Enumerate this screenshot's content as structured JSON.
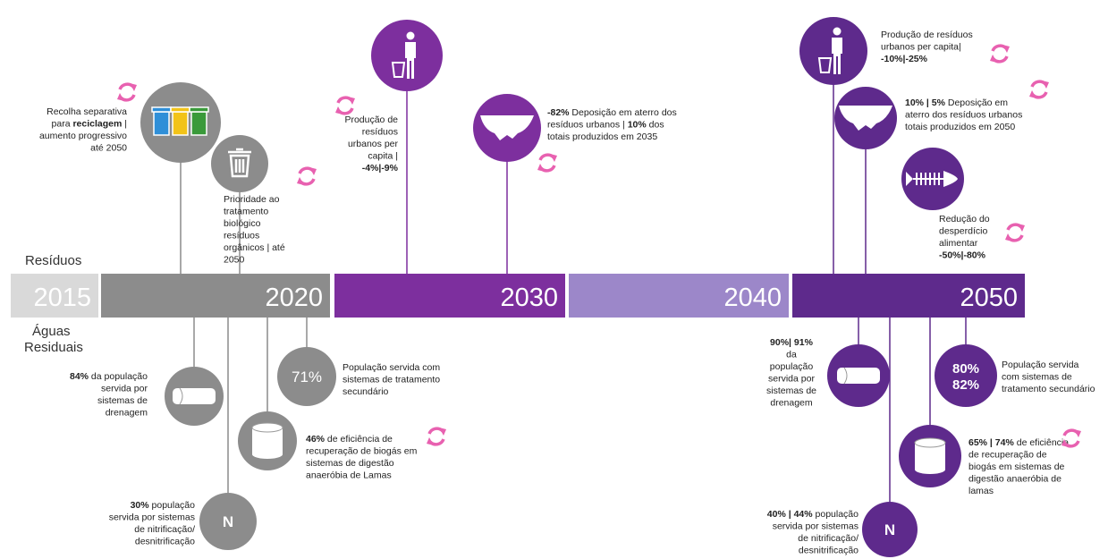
{
  "residuos_label": "Resíduos",
  "aguas_label": [
    "Águas",
    "Residuais"
  ],
  "timeline": [
    {
      "year": "2015",
      "color": "#d9d9d9"
    },
    {
      "year": "2020",
      "color": "#8c8c8c"
    },
    {
      "year": "2030",
      "color": "#7d2f9e"
    },
    {
      "year": "2040",
      "color": "#9c87c9"
    },
    {
      "year": "2050",
      "color": "#5e2a8c"
    }
  ],
  "items": [
    {
      "icon": "bins",
      "color": "#8c8c8c",
      "cycle": true,
      "lines": [
        [
          "Recolha separativa"
        ],
        [
          "para ",
          {
            "bold": "reciclagem"
          },
          " |"
        ],
        [
          "aumento progressivo"
        ],
        [
          "até 2050"
        ]
      ]
    },
    {
      "icon": "trash",
      "color": "#8c8c8c",
      "cycle": true,
      "lines": [
        [
          "Prioridade ao"
        ],
        [
          "tratamento"
        ],
        [
          "biológico"
        ],
        [
          "resíduos"
        ],
        [
          "orgânicos | até"
        ],
        [
          "2050"
        ]
      ]
    },
    {
      "icon": "person",
      "color": "#7d2f9e",
      "cycle": true,
      "lines": [
        [
          "Produção de"
        ],
        [
          "resíduos"
        ],
        [
          "urbanos per"
        ],
        [
          "capita |"
        ],
        [
          {
            "bold": "-4%|-9%"
          }
        ]
      ]
    },
    {
      "icon": "landfill",
      "color": "#7d2f9e",
      "cycle": true,
      "lines": [
        [
          {
            "bold": "-82%"
          },
          " Deposição em aterro dos"
        ],
        [
          "resíduos urbanos | ",
          {
            "bold": "10%"
          },
          " dos"
        ],
        [
          "totais produzidos em 2035"
        ]
      ]
    },
    {
      "icon": "person",
      "color": "#5e2a8c",
      "cycle": true,
      "lines": [
        [
          "Produção de resíduos"
        ],
        [
          "urbanos per capita|"
        ],
        [
          {
            "bold": "-10%|-25%"
          }
        ]
      ]
    },
    {
      "icon": "landfill",
      "color": "#5e2a8c",
      "cycle": true,
      "lines": [
        [
          {
            "bold": "10% | 5%"
          },
          " Deposição em"
        ],
        [
          "aterro dos resíduos urbanos"
        ],
        [
          "totais produzidos em 2050"
        ]
      ]
    },
    {
      "icon": "fish",
      "color": "#5e2a8c",
      "cycle": true,
      "lines": [
        [
          "Redução do"
        ],
        [
          "desperdício"
        ],
        [
          "alimentar"
        ],
        [
          {
            "bold": "-50%|-80%"
          }
        ]
      ]
    },
    {
      "icon": "pipe",
      "color": "#8c8c8c",
      "cycle": false,
      "lines": [
        [
          {
            "bold": "84%"
          },
          " da população"
        ],
        [
          "servida por"
        ],
        [
          "sistemas de"
        ],
        [
          "drenagem"
        ]
      ]
    },
    {
      "icon": "none",
      "color": "#8c8c8c",
      "cycle": false,
      "circle_text": [
        "71%"
      ],
      "lines": [
        [
          "População servida com"
        ],
        [
          "sistemas de tratamento"
        ],
        [
          "secundário"
        ]
      ]
    },
    {
      "icon": "cylinder",
      "color": "#8c8c8c",
      "cycle": true,
      "lines": [
        [
          {
            "bold": "46%"
          },
          " de eficiência de"
        ],
        [
          "recuperação de biogás em"
        ],
        [
          "sistemas de digestão"
        ],
        [
          "anaeróbia de Lamas"
        ]
      ]
    },
    {
      "icon": "none",
      "color": "#8c8c8c",
      "cycle": false,
      "circle_text": [
        "N"
      ],
      "lines": [
        [
          {
            "bold": "30%"
          },
          " população"
        ],
        [
          "servida por sistemas"
        ],
        [
          "de nitrificação/"
        ],
        [
          "desnitrificação"
        ]
      ]
    },
    {
      "icon": "pipe",
      "color": "#5e2a8c",
      "cycle": false,
      "lines": [
        [
          {
            "bold": "90%| 91%"
          }
        ],
        [
          "da"
        ],
        [
          "população"
        ],
        [
          "servida por"
        ],
        [
          "sistemas de"
        ],
        [
          "drenagem"
        ]
      ]
    },
    {
      "icon": "none",
      "color": "#5e2a8c",
      "cycle": false,
      "circle_text": [
        "80%",
        "82%"
      ],
      "lines": [
        [
          "População servida"
        ],
        [
          "com sistemas de"
        ],
        [
          "tratamento secundário"
        ]
      ]
    },
    {
      "icon": "cylinder",
      "color": "#5e2a8c",
      "cycle": true,
      "lines": [
        [
          {
            "bold": "65% | 74%"
          },
          " de eficiência"
        ],
        [
          "de recuperação de"
        ],
        [
          "biogás em sistemas de"
        ],
        [
          "digestão anaeróbia de"
        ],
        [
          "lamas"
        ]
      ]
    },
    {
      "icon": "none",
      "color": "#5e2a8c",
      "cycle": false,
      "circle_text": [
        "N"
      ],
      "lines": [
        [
          {
            "bold": "40% | 44%"
          },
          " população"
        ],
        [
          "servida por sistemas"
        ],
        [
          "de nitrificação/"
        ],
        [
          "desnitrificação"
        ]
      ]
    }
  ]
}
